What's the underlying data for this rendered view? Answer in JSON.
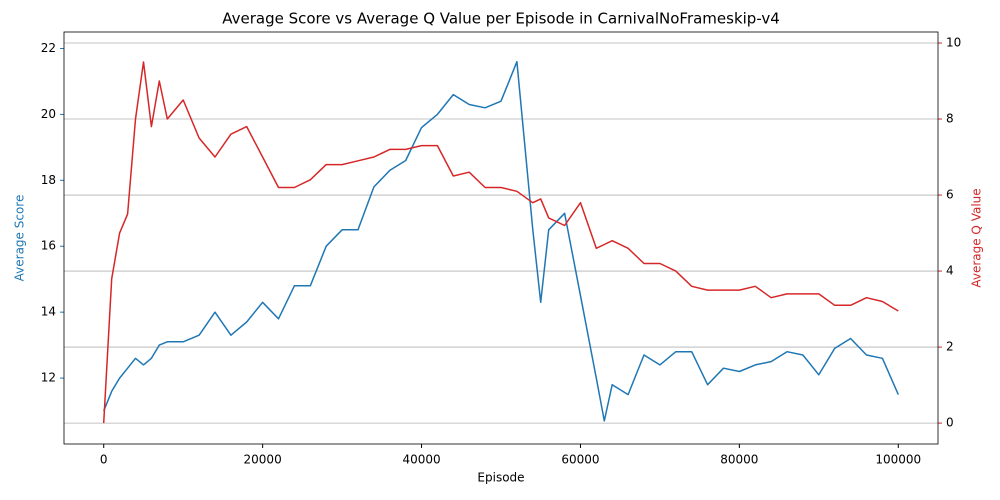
{
  "chart_data": {
    "type": "line",
    "title": "Average Score vs Average Q Value per Episode in CarnivalNoFrameskip-v4",
    "xlabel": "Episode",
    "ylabel": "Average Score",
    "y2label": "Average Q Value",
    "x": [
      0,
      1000,
      2000,
      3000,
      4000,
      5000,
      6000,
      7000,
      8000,
      10000,
      12000,
      14000,
      16000,
      18000,
      20000,
      22000,
      24000,
      26000,
      28000,
      30000,
      32000,
      34000,
      36000,
      38000,
      40000,
      42000,
      44000,
      46000,
      48000,
      50000,
      52000,
      54000,
      55000,
      56000,
      58000,
      60000,
      62000,
      63000,
      64000,
      66000,
      68000,
      70000,
      72000,
      74000,
      76000,
      78000,
      80000,
      82000,
      84000,
      86000,
      88000,
      90000,
      92000,
      94000,
      96000,
      98000,
      100000
    ],
    "series": [
      {
        "name": "Average Score",
        "color": "#1f77b4",
        "axis": "y",
        "values": [
          11.0,
          11.6,
          12.0,
          12.3,
          12.6,
          12.4,
          12.6,
          13.0,
          13.1,
          13.1,
          13.3,
          14.0,
          13.3,
          13.7,
          14.3,
          13.8,
          14.8,
          14.8,
          16.0,
          16.5,
          16.5,
          17.8,
          18.3,
          18.6,
          19.6,
          20.0,
          20.6,
          20.3,
          20.2,
          20.4,
          21.6,
          16.5,
          14.3,
          16.5,
          17.0,
          14.5,
          12.0,
          10.7,
          11.8,
          11.5,
          12.7,
          12.4,
          12.8,
          12.8,
          11.8,
          12.3,
          12.2,
          12.4,
          12.5,
          12.8,
          12.7,
          12.1,
          12.9,
          13.2,
          12.7,
          12.6,
          11.5
        ]
      },
      {
        "name": "Average Q Value",
        "color": "#d62728",
        "axis": "y2",
        "values": [
          0.0,
          3.8,
          5.0,
          5.5,
          8.0,
          9.5,
          7.8,
          9.0,
          8.0,
          8.5,
          7.5,
          7.0,
          7.6,
          7.8,
          7.0,
          6.2,
          6.2,
          6.4,
          6.8,
          6.8,
          6.9,
          7.0,
          7.2,
          7.2,
          7.3,
          7.3,
          6.5,
          6.6,
          6.2,
          6.2,
          6.1,
          5.8,
          5.9,
          5.4,
          5.2,
          5.8,
          4.6,
          4.7,
          4.8,
          4.6,
          4.2,
          4.2,
          4.0,
          3.6,
          3.5,
          3.5,
          3.5,
          3.6,
          3.3,
          3.4,
          3.4,
          3.4,
          3.1,
          3.1,
          3.3,
          3.2,
          2.95
        ]
      }
    ],
    "xlim": [
      -5000,
      105000
    ],
    "xticks": [
      0,
      20000,
      40000,
      60000,
      80000,
      100000
    ],
    "ylim": [
      10.0,
      22.5
    ],
    "yticks": [
      12,
      14,
      16,
      18,
      20,
      22
    ],
    "y2lim": [
      -0.55,
      10.29
    ],
    "y2ticks": [
      0,
      2,
      4,
      6,
      8,
      10
    ],
    "grid": "y2"
  }
}
